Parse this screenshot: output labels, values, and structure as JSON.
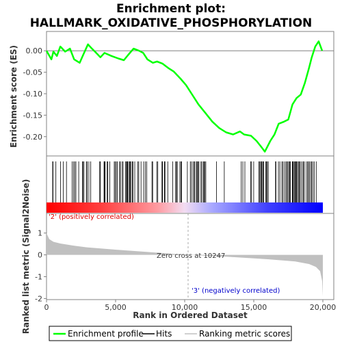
{
  "chart_data": {
    "type": "line",
    "title_line1": "Enrichment plot:",
    "title_line2": "HALLMARK_OXIDATIVE_PHOSPHORYLATION",
    "es_ylabel": "Enrichment score (ES)",
    "metric_ylabel": "Ranked list metric (Signal2Noise)",
    "xlabel": "Rank in Ordered Dataset",
    "xlim": [
      0,
      20000
    ],
    "x_ticks": [
      0,
      5000,
      10000,
      15000,
      20000
    ],
    "x_tick_labels": [
      "0",
      "5,000",
      "10,000",
      "15,000",
      "20,000"
    ],
    "es_ylim": [
      -0.245,
      0.045
    ],
    "es_y_ticks": [
      0.0,
      -0.05,
      -0.1,
      -0.15,
      -0.2
    ],
    "es_y_tick_labels": [
      "0.00",
      "-0.05",
      "-0.10",
      "-0.15",
      "-0.20"
    ],
    "metric_ylim": [
      -2.05,
      1.9
    ],
    "metric_y_ticks": [
      1,
      0,
      -1,
      -2
    ],
    "metric_y_tick_labels": [
      "1",
      "0",
      "-1",
      "-2"
    ],
    "enrichment_profile": {
      "name": "Enrichment profile",
      "color": "#00ff00",
      "x": [
        0,
        350,
        500,
        750,
        1000,
        1350,
        1700,
        2000,
        2400,
        2650,
        3000,
        3200,
        3600,
        3900,
        4200,
        4700,
        5200,
        5600,
        5900,
        6300,
        6700,
        7000,
        7300,
        7700,
        8000,
        8400,
        8800,
        9200,
        9700,
        10100,
        10500,
        11000,
        11500,
        12000,
        12500,
        13000,
        13500,
        14000,
        14300,
        14800,
        15200,
        15500,
        15800,
        16200,
        16500,
        16800,
        17200,
        17500,
        17800,
        18100,
        18400,
        18700,
        19000,
        19200,
        19450,
        19700,
        19950
      ],
      "y": [
        0.0,
        -0.02,
        -0.002,
        -0.012,
        0.01,
        -0.002,
        0.005,
        -0.02,
        -0.028,
        -0.01,
        0.015,
        0.008,
        -0.005,
        -0.015,
        -0.005,
        -0.012,
        -0.018,
        -0.022,
        -0.01,
        0.005,
        0.0,
        -0.005,
        -0.02,
        -0.028,
        -0.025,
        -0.03,
        -0.04,
        -0.048,
        -0.065,
        -0.08,
        -0.1,
        -0.125,
        -0.145,
        -0.165,
        -0.18,
        -0.19,
        -0.195,
        -0.188,
        -0.195,
        -0.198,
        -0.21,
        -0.222,
        -0.235,
        -0.21,
        -0.195,
        -0.17,
        -0.165,
        -0.16,
        -0.125,
        -0.11,
        -0.102,
        -0.075,
        -0.04,
        -0.015,
        0.01,
        0.022,
        0.0
      ]
    },
    "zero_cross_label": "Zero cross at 10247",
    "zero_cross_rank": 10247,
    "pos_label": "'2' (positively correlated)",
    "neg_label": "'3' (negatively correlated)",
    "pos_color": "#ff0000",
    "neg_color": "#0000ff",
    "metric_curve": {
      "x": [
        0,
        200,
        500,
        1000,
        2000,
        3000,
        5000,
        8000,
        10247,
        13000,
        16000,
        18000,
        19000,
        19500,
        19800,
        19950,
        20000
      ],
      "y": [
        1.0,
        0.72,
        0.6,
        0.52,
        0.42,
        0.34,
        0.24,
        0.1,
        0.0,
        -0.08,
        -0.2,
        -0.3,
        -0.42,
        -0.55,
        -0.75,
        -1.2,
        -1.9
      ]
    },
    "legend": [
      {
        "label": "Enrichment profile",
        "color": "#00ff00"
      },
      {
        "label": "Hits",
        "color": "#000000"
      },
      {
        "label": "Ranking metric scores",
        "color": "#c0c0c0"
      }
    ]
  }
}
